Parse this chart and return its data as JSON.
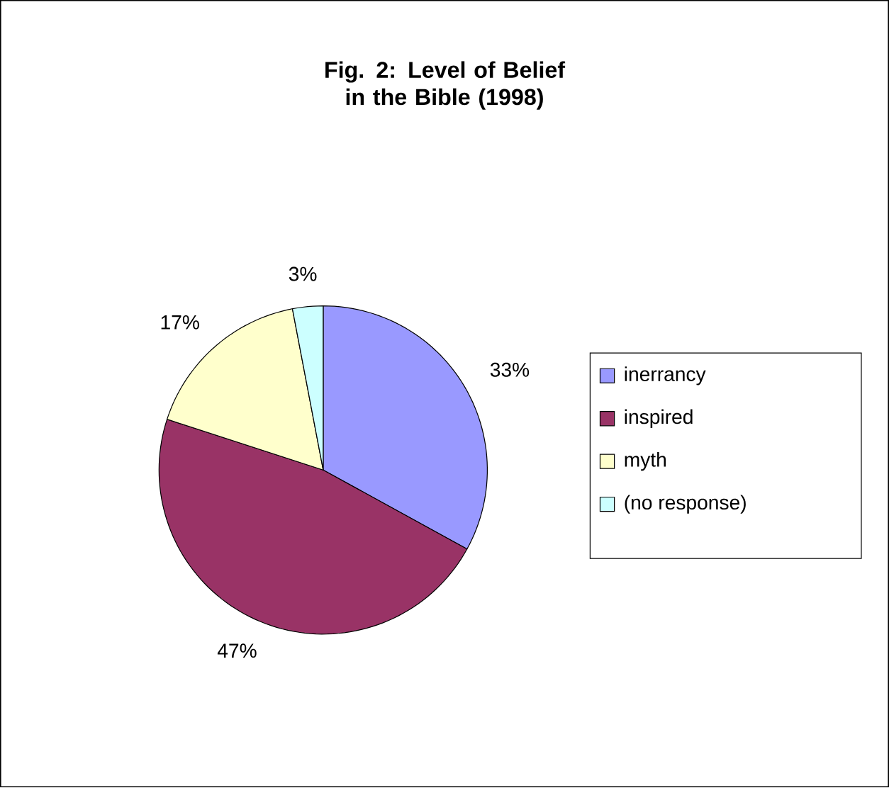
{
  "chart_data": {
    "type": "pie",
    "title": "Fig. 2: Level of Belief in the Bible (1998)",
    "categories": [
      "inerrancy",
      "inspired",
      "myth",
      "(no response)"
    ],
    "values": [
      33,
      47,
      17,
      3
    ],
    "colors": [
      "#9999ff",
      "#993366",
      "#ffffcc",
      "#ccffff"
    ],
    "value_labels": [
      "33%",
      "47%",
      "17%",
      "3%"
    ],
    "legend": "right"
  }
}
